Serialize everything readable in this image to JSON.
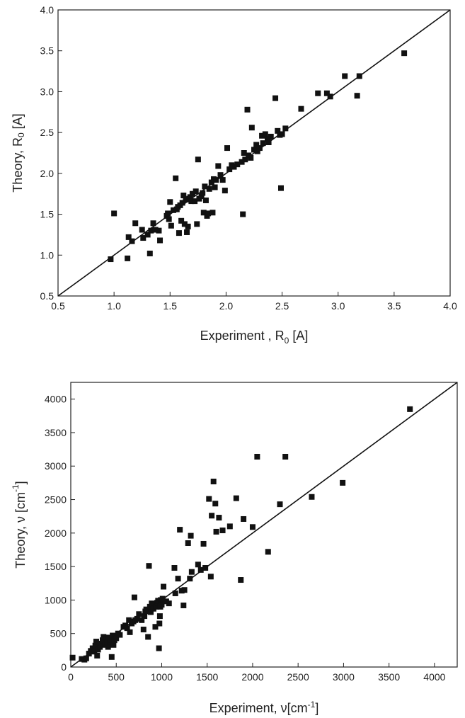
{
  "chart_data": [
    {
      "type": "scatter",
      "xlabel": "Experiment , R",
      "xlabel_sub": "0",
      "xlabel_unit": " [A]",
      "ylabel": "Theory, R",
      "ylabel_sub": "0",
      "ylabel_unit": " [A]",
      "xlim": [
        0.5,
        4.0
      ],
      "ylim": [
        0.5,
        4.0
      ],
      "xticks": [
        "0.5",
        "1.0",
        "1.5",
        "2.0",
        "2.5",
        "3.0",
        "3.5",
        "4.0"
      ],
      "yticks": [
        "0.5",
        "1.0",
        "1.5",
        "2.0",
        "2.5",
        "3.0",
        "3.5",
        "4.0"
      ],
      "reference_line": [
        [
          0.5,
          0.5
        ],
        [
          4.0,
          4.0
        ]
      ],
      "grid": false,
      "points": [
        [
          0.97,
          0.95
        ],
        [
          1.0,
          1.51
        ],
        [
          1.12,
          0.96
        ],
        [
          1.13,
          1.22
        ],
        [
          1.16,
          1.17
        ],
        [
          1.19,
          1.39
        ],
        [
          1.25,
          1.31
        ],
        [
          1.26,
          1.21
        ],
        [
          1.3,
          1.25
        ],
        [
          1.32,
          1.02
        ],
        [
          1.33,
          1.3
        ],
        [
          1.35,
          1.39
        ],
        [
          1.37,
          1.31
        ],
        [
          1.4,
          1.3
        ],
        [
          1.41,
          1.18
        ],
        [
          1.47,
          1.48
        ],
        [
          1.48,
          1.51
        ],
        [
          1.49,
          1.44
        ],
        [
          1.5,
          1.65
        ],
        [
          1.51,
          1.36
        ],
        [
          1.53,
          1.55
        ],
        [
          1.55,
          1.94
        ],
        [
          1.56,
          1.56
        ],
        [
          1.57,
          1.59
        ],
        [
          1.58,
          1.27
        ],
        [
          1.59,
          1.61
        ],
        [
          1.6,
          1.42
        ],
        [
          1.61,
          1.64
        ],
        [
          1.62,
          1.73
        ],
        [
          1.63,
          1.38
        ],
        [
          1.64,
          1.68
        ],
        [
          1.65,
          1.28
        ],
        [
          1.66,
          1.35
        ],
        [
          1.67,
          1.69
        ],
        [
          1.68,
          1.71
        ],
        [
          1.69,
          1.66
        ],
        [
          1.7,
          1.75
        ],
        [
          1.72,
          1.66
        ],
        [
          1.73,
          1.78
        ],
        [
          1.74,
          1.38
        ],
        [
          1.75,
          2.17
        ],
        [
          1.76,
          1.69
        ],
        [
          1.78,
          1.72
        ],
        [
          1.79,
          1.76
        ],
        [
          1.8,
          1.52
        ],
        [
          1.81,
          1.84
        ],
        [
          1.82,
          1.67
        ],
        [
          1.83,
          1.48
        ],
        [
          1.84,
          1.51
        ],
        [
          1.85,
          1.81
        ],
        [
          1.87,
          1.89
        ],
        [
          1.88,
          1.52
        ],
        [
          1.89,
          1.93
        ],
        [
          1.9,
          1.83
        ],
        [
          1.91,
          1.92
        ],
        [
          1.93,
          2.09
        ],
        [
          1.95,
          1.98
        ],
        [
          1.97,
          1.92
        ],
        [
          1.99,
          1.79
        ],
        [
          2.01,
          2.31
        ],
        [
          2.03,
          2.05
        ],
        [
          2.05,
          2.1
        ],
        [
          2.07,
          2.08
        ],
        [
          2.1,
          2.11
        ],
        [
          2.14,
          2.14
        ],
        [
          2.15,
          1.5
        ],
        [
          2.16,
          2.25
        ],
        [
          2.17,
          2.17
        ],
        [
          2.19,
          2.78
        ],
        [
          2.2,
          2.22
        ],
        [
          2.22,
          2.19
        ],
        [
          2.23,
          2.56
        ],
        [
          2.25,
          2.29
        ],
        [
          2.27,
          2.35
        ],
        [
          2.28,
          2.27
        ],
        [
          2.3,
          2.31
        ],
        [
          2.32,
          2.46
        ],
        [
          2.33,
          2.37
        ],
        [
          2.35,
          2.48
        ],
        [
          2.37,
          2.42
        ],
        [
          2.38,
          2.38
        ],
        [
          2.4,
          2.45
        ],
        [
          2.44,
          2.92
        ],
        [
          2.46,
          2.52
        ],
        [
          2.48,
          2.47
        ],
        [
          2.49,
          1.82
        ],
        [
          2.5,
          2.48
        ],
        [
          2.53,
          2.55
        ],
        [
          2.67,
          2.79
        ],
        [
          2.82,
          2.98
        ],
        [
          2.9,
          2.98
        ],
        [
          2.93,
          2.94
        ],
        [
          3.06,
          3.19
        ],
        [
          3.17,
          2.95
        ],
        [
          3.19,
          3.19
        ],
        [
          3.59,
          3.47
        ]
      ]
    },
    {
      "type": "scatter",
      "xlabel": "Experiment, ν",
      "xlabel_unit_pre": "[cm",
      "xlabel_sup": "-1",
      "xlabel_unit_post": "]",
      "ylabel": "Theory, ν",
      "ylabel_unit_pre": "[cm",
      "ylabel_sup": "-1",
      "ylabel_unit_post": "]",
      "xlim": [
        0,
        4250
      ],
      "ylim": [
        0,
        4250
      ],
      "xticks": [
        "0",
        "500",
        "1000",
        "1500",
        "2000",
        "2500",
        "3000",
        "3500",
        "4000"
      ],
      "yticks": [
        "0",
        "500",
        "1000",
        "1500",
        "2000",
        "2500",
        "3000",
        "3500",
        "4000"
      ],
      "reference_line": [
        [
          0,
          0
        ],
        [
          4250,
          4250
        ]
      ],
      "grid": false,
      "points": [
        [
          20,
          140
        ],
        [
          120,
          120
        ],
        [
          150,
          110
        ],
        [
          170,
          130
        ],
        [
          200,
          200
        ],
        [
          220,
          240
        ],
        [
          240,
          280
        ],
        [
          260,
          230
        ],
        [
          270,
          320
        ],
        [
          280,
          380
        ],
        [
          290,
          170
        ],
        [
          300,
          260
        ],
        [
          320,
          300
        ],
        [
          340,
          350
        ],
        [
          350,
          400
        ],
        [
          360,
          450
        ],
        [
          380,
          330
        ],
        [
          390,
          420
        ],
        [
          400,
          370
        ],
        [
          410,
          300
        ],
        [
          420,
          440
        ],
        [
          430,
          380
        ],
        [
          440,
          410
        ],
        [
          450,
          150
        ],
        [
          460,
          470
        ],
        [
          470,
          330
        ],
        [
          480,
          400
        ],
        [
          490,
          450
        ],
        [
          500,
          430
        ],
        [
          520,
          500
        ],
        [
          540,
          480
        ],
        [
          580,
          600
        ],
        [
          600,
          620
        ],
        [
          620,
          580
        ],
        [
          640,
          700
        ],
        [
          650,
          520
        ],
        [
          670,
          650
        ],
        [
          690,
          680
        ],
        [
          700,
          1040
        ],
        [
          710,
          700
        ],
        [
          730,
          720
        ],
        [
          750,
          790
        ],
        [
          780,
          700
        ],
        [
          800,
          560
        ],
        [
          810,
          760
        ],
        [
          820,
          830
        ],
        [
          830,
          860
        ],
        [
          850,
          450
        ],
        [
          860,
          1510
        ],
        [
          870,
          900
        ],
        [
          880,
          820
        ],
        [
          890,
          950
        ],
        [
          900,
          940
        ],
        [
          910,
          870
        ],
        [
          930,
          600
        ],
        [
          940,
          900
        ],
        [
          950,
          960
        ],
        [
          960,
          990
        ],
        [
          970,
          280
        ],
        [
          975,
          650
        ],
        [
          980,
          760
        ],
        [
          985,
          900
        ],
        [
          990,
          1000
        ],
        [
          1000,
          930
        ],
        [
          1010,
          1020
        ],
        [
          1020,
          1200
        ],
        [
          1050,
          980
        ],
        [
          1080,
          950
        ],
        [
          1140,
          1480
        ],
        [
          1150,
          1100
        ],
        [
          1180,
          1320
        ],
        [
          1200,
          2050
        ],
        [
          1220,
          1140
        ],
        [
          1240,
          920
        ],
        [
          1250,
          1150
        ],
        [
          1290,
          1850
        ],
        [
          1310,
          1320
        ],
        [
          1320,
          1960
        ],
        [
          1330,
          1420
        ],
        [
          1400,
          1530
        ],
        [
          1430,
          1450
        ],
        [
          1460,
          1840
        ],
        [
          1480,
          1480
        ],
        [
          1520,
          2510
        ],
        [
          1540,
          1350
        ],
        [
          1550,
          2260
        ],
        [
          1570,
          2770
        ],
        [
          1590,
          2440
        ],
        [
          1600,
          2020
        ],
        [
          1630,
          2230
        ],
        [
          1670,
          2040
        ],
        [
          1750,
          2100
        ],
        [
          1820,
          2520
        ],
        [
          1870,
          1300
        ],
        [
          1900,
          2210
        ],
        [
          2000,
          2090
        ],
        [
          2050,
          3140
        ],
        [
          2170,
          1720
        ],
        [
          2300,
          2430
        ],
        [
          2360,
          3140
        ],
        [
          2650,
          2540
        ],
        [
          2990,
          2750
        ],
        [
          3730,
          3850
        ]
      ]
    }
  ]
}
